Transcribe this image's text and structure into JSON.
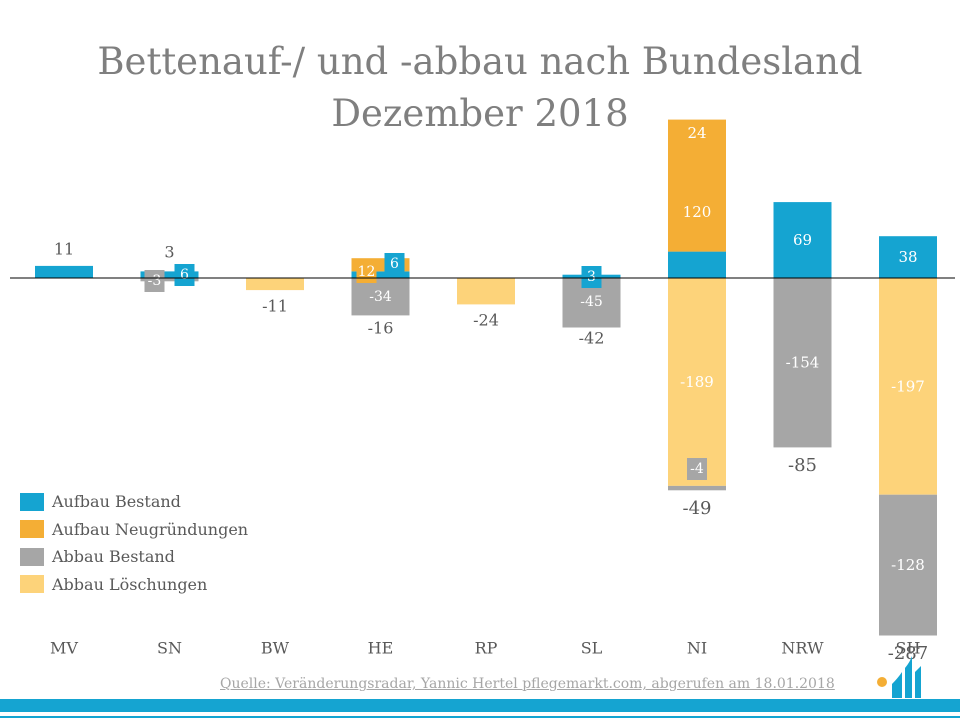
{
  "chart_data": {
    "type": "bar",
    "stacked": true,
    "title": "Bettenauf-/ und -abbau nach Bundesland",
    "subtitle": "Dezember 2018",
    "categories": [
      "MV",
      "SN",
      "BW",
      "HE",
      "RP",
      "SL",
      "NI",
      "NRW",
      "SH"
    ],
    "series": [
      {
        "name": "Aufbau Bestand",
        "color": "#15a4d1",
        "values": [
          11,
          6,
          0,
          6,
          0,
          3,
          24,
          69,
          38
        ]
      },
      {
        "name": "Aufbau Neugründungen",
        "color": "#f4ae35",
        "values": [
          0,
          0,
          0,
          12,
          0,
          0,
          120,
          0,
          0
        ]
      },
      {
        "name": "Abbau Bestand",
        "color": "#a6a6a6",
        "values": [
          0,
          -3,
          0,
          -34,
          0,
          -45,
          -4,
          -154,
          -128
        ]
      },
      {
        "name": "Abbau Löschungen",
        "color": "#fdd37a",
        "values": [
          0,
          0,
          -11,
          0,
          -24,
          0,
          -189,
          0,
          -197
        ]
      }
    ],
    "totals": [
      11,
      3,
      -11,
      -16,
      -24,
      -42,
      -49,
      -85,
      -287
    ],
    "ylim": [
      -310,
      150
    ],
    "legend_position": "left"
  },
  "source": "Quelle: Veränderungsradar, Yannic Hertel pflegemarkt.com, abgerufen am 18.01.2018",
  "logo_icon": "pflegemarkt-logo-icon"
}
